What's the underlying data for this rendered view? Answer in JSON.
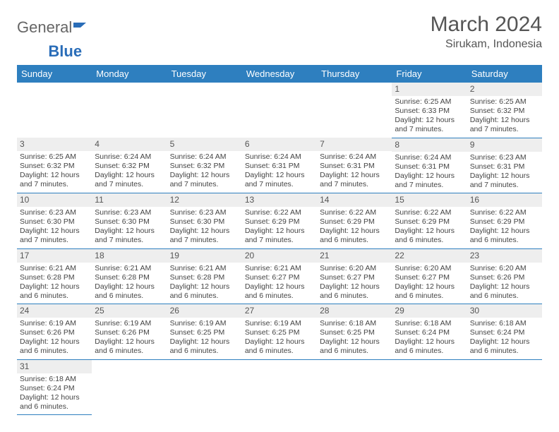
{
  "logo": {
    "general": "General",
    "blue": "Blue"
  },
  "title": "March 2024",
  "location": "Sirukam, Indonesia",
  "colors": {
    "header_bg": "#2e7fbf",
    "header_text": "#ffffff",
    "daynum_bg": "#eeeeee",
    "border": "#2e7fbf",
    "text": "#444444"
  },
  "daysOfWeek": [
    "Sunday",
    "Monday",
    "Tuesday",
    "Wednesday",
    "Thursday",
    "Friday",
    "Saturday"
  ],
  "weeks": [
    [
      {
        "empty": true
      },
      {
        "empty": true
      },
      {
        "empty": true
      },
      {
        "empty": true
      },
      {
        "empty": true
      },
      {
        "num": "1",
        "sunrise": "6:25 AM",
        "sunset": "6:33 PM",
        "daylight": "12 hours and 7 minutes."
      },
      {
        "num": "2",
        "sunrise": "6:25 AM",
        "sunset": "6:32 PM",
        "daylight": "12 hours and 7 minutes."
      }
    ],
    [
      {
        "num": "3",
        "sunrise": "6:25 AM",
        "sunset": "6:32 PM",
        "daylight": "12 hours and 7 minutes."
      },
      {
        "num": "4",
        "sunrise": "6:24 AM",
        "sunset": "6:32 PM",
        "daylight": "12 hours and 7 minutes."
      },
      {
        "num": "5",
        "sunrise": "6:24 AM",
        "sunset": "6:32 PM",
        "daylight": "12 hours and 7 minutes."
      },
      {
        "num": "6",
        "sunrise": "6:24 AM",
        "sunset": "6:31 PM",
        "daylight": "12 hours and 7 minutes."
      },
      {
        "num": "7",
        "sunrise": "6:24 AM",
        "sunset": "6:31 PM",
        "daylight": "12 hours and 7 minutes."
      },
      {
        "num": "8",
        "sunrise": "6:24 AM",
        "sunset": "6:31 PM",
        "daylight": "12 hours and 7 minutes."
      },
      {
        "num": "9",
        "sunrise": "6:23 AM",
        "sunset": "6:31 PM",
        "daylight": "12 hours and 7 minutes."
      }
    ],
    [
      {
        "num": "10",
        "sunrise": "6:23 AM",
        "sunset": "6:30 PM",
        "daylight": "12 hours and 7 minutes."
      },
      {
        "num": "11",
        "sunrise": "6:23 AM",
        "sunset": "6:30 PM",
        "daylight": "12 hours and 7 minutes."
      },
      {
        "num": "12",
        "sunrise": "6:23 AM",
        "sunset": "6:30 PM",
        "daylight": "12 hours and 7 minutes."
      },
      {
        "num": "13",
        "sunrise": "6:22 AM",
        "sunset": "6:29 PM",
        "daylight": "12 hours and 7 minutes."
      },
      {
        "num": "14",
        "sunrise": "6:22 AM",
        "sunset": "6:29 PM",
        "daylight": "12 hours and 6 minutes."
      },
      {
        "num": "15",
        "sunrise": "6:22 AM",
        "sunset": "6:29 PM",
        "daylight": "12 hours and 6 minutes."
      },
      {
        "num": "16",
        "sunrise": "6:22 AM",
        "sunset": "6:29 PM",
        "daylight": "12 hours and 6 minutes."
      }
    ],
    [
      {
        "num": "17",
        "sunrise": "6:21 AM",
        "sunset": "6:28 PM",
        "daylight": "12 hours and 6 minutes."
      },
      {
        "num": "18",
        "sunrise": "6:21 AM",
        "sunset": "6:28 PM",
        "daylight": "12 hours and 6 minutes."
      },
      {
        "num": "19",
        "sunrise": "6:21 AM",
        "sunset": "6:28 PM",
        "daylight": "12 hours and 6 minutes."
      },
      {
        "num": "20",
        "sunrise": "6:21 AM",
        "sunset": "6:27 PM",
        "daylight": "12 hours and 6 minutes."
      },
      {
        "num": "21",
        "sunrise": "6:20 AM",
        "sunset": "6:27 PM",
        "daylight": "12 hours and 6 minutes."
      },
      {
        "num": "22",
        "sunrise": "6:20 AM",
        "sunset": "6:27 PM",
        "daylight": "12 hours and 6 minutes."
      },
      {
        "num": "23",
        "sunrise": "6:20 AM",
        "sunset": "6:26 PM",
        "daylight": "12 hours and 6 minutes."
      }
    ],
    [
      {
        "num": "24",
        "sunrise": "6:19 AM",
        "sunset": "6:26 PM",
        "daylight": "12 hours and 6 minutes."
      },
      {
        "num": "25",
        "sunrise": "6:19 AM",
        "sunset": "6:26 PM",
        "daylight": "12 hours and 6 minutes."
      },
      {
        "num": "26",
        "sunrise": "6:19 AM",
        "sunset": "6:25 PM",
        "daylight": "12 hours and 6 minutes."
      },
      {
        "num": "27",
        "sunrise": "6:19 AM",
        "sunset": "6:25 PM",
        "daylight": "12 hours and 6 minutes."
      },
      {
        "num": "28",
        "sunrise": "6:18 AM",
        "sunset": "6:25 PM",
        "daylight": "12 hours and 6 minutes."
      },
      {
        "num": "29",
        "sunrise": "6:18 AM",
        "sunset": "6:24 PM",
        "daylight": "12 hours and 6 minutes."
      },
      {
        "num": "30",
        "sunrise": "6:18 AM",
        "sunset": "6:24 PM",
        "daylight": "12 hours and 6 minutes."
      }
    ],
    [
      {
        "num": "31",
        "sunrise": "6:18 AM",
        "sunset": "6:24 PM",
        "daylight": "12 hours and 6 minutes."
      },
      {
        "empty": true
      },
      {
        "empty": true
      },
      {
        "empty": true
      },
      {
        "empty": true
      },
      {
        "empty": true
      },
      {
        "empty": true
      }
    ]
  ],
  "labels": {
    "sunrise": "Sunrise: ",
    "sunset": "Sunset: ",
    "daylight": "Daylight: "
  }
}
